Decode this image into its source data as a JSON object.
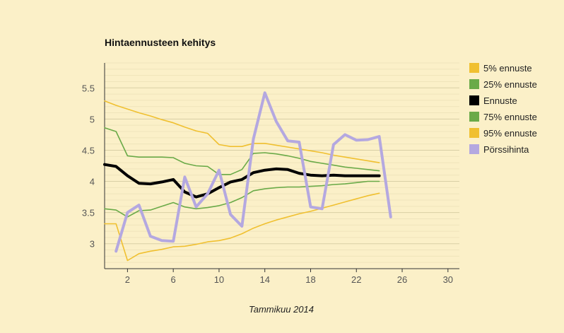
{
  "chart_data": {
    "type": "line",
    "title": "Hintaennusteen kehitys",
    "xlabel": "Tammikuu 2014",
    "ylabel": "",
    "xlim": [
      0,
      31
    ],
    "ylim": [
      2.6,
      5.9
    ],
    "x_ticks": [
      2,
      6,
      10,
      14,
      18,
      22,
      26,
      30
    ],
    "y_ticks": [
      3,
      3.5,
      4,
      4.5,
      5,
      5.5
    ],
    "y_tick_labels": [
      "3",
      "3.5",
      "4",
      "4.5",
      "5",
      "5.5"
    ],
    "grid": true,
    "legend_position": "right",
    "series": [
      {
        "name": "5% ennuste",
        "color": "#f0c030",
        "width": 1.6,
        "x": [
          0,
          1,
          2,
          3,
          4,
          5,
          6,
          7,
          8,
          9,
          10,
          11,
          12,
          13,
          14,
          15,
          16,
          17,
          18,
          19,
          20,
          21,
          22,
          23,
          24
        ],
        "values": [
          3.32,
          3.32,
          2.73,
          2.84,
          2.88,
          2.91,
          2.95,
          2.96,
          2.99,
          3.03,
          3.05,
          3.09,
          3.16,
          3.25,
          3.32,
          3.38,
          3.43,
          3.48,
          3.52,
          3.57,
          3.62,
          3.67,
          3.72,
          3.77,
          3.81
        ]
      },
      {
        "name": "25% ennuste",
        "color": "#6aaa48",
        "width": 1.6,
        "x": [
          0,
          1,
          2,
          3,
          4,
          5,
          6,
          7,
          8,
          9,
          10,
          11,
          12,
          13,
          14,
          15,
          16,
          17,
          18,
          19,
          20,
          21,
          22,
          23,
          24
        ],
        "values": [
          3.56,
          3.54,
          3.43,
          3.53,
          3.54,
          3.6,
          3.66,
          3.59,
          3.56,
          3.58,
          3.61,
          3.66,
          3.74,
          3.85,
          3.88,
          3.9,
          3.91,
          3.91,
          3.92,
          3.93,
          3.95,
          3.96,
          3.98,
          4.0,
          4.0
        ]
      },
      {
        "name": "Ennuste",
        "color": "#000000",
        "width": 4,
        "x": [
          0,
          1,
          2,
          3,
          4,
          5,
          6,
          7,
          8,
          9,
          10,
          11,
          12,
          13,
          14,
          15,
          16,
          17,
          18,
          19,
          20,
          21,
          22,
          23,
          24
        ],
        "values": [
          4.27,
          4.24,
          4.09,
          3.97,
          3.96,
          3.99,
          4.03,
          3.83,
          3.75,
          3.8,
          3.9,
          3.99,
          4.03,
          4.14,
          4.18,
          4.2,
          4.19,
          4.13,
          4.1,
          4.09,
          4.1,
          4.09,
          4.09,
          4.09,
          4.09
        ]
      },
      {
        "name": "75% ennuste",
        "color": "#6aaa48",
        "width": 1.6,
        "x": [
          0,
          1,
          2,
          3,
          4,
          5,
          6,
          7,
          8,
          9,
          10,
          11,
          12,
          13,
          14,
          15,
          16,
          17,
          18,
          19,
          20,
          21,
          22,
          23,
          24
        ],
        "values": [
          4.86,
          4.8,
          4.41,
          4.39,
          4.39,
          4.39,
          4.38,
          4.29,
          4.25,
          4.24,
          4.11,
          4.11,
          4.19,
          4.45,
          4.46,
          4.44,
          4.41,
          4.37,
          4.32,
          4.29,
          4.26,
          4.23,
          4.21,
          4.19,
          4.17
        ]
      },
      {
        "name": "95% ennuste",
        "color": "#f0c030",
        "width": 1.6,
        "x": [
          0,
          1,
          2,
          3,
          4,
          5,
          6,
          7,
          8,
          9,
          10,
          11,
          12,
          13,
          14,
          15,
          16,
          17,
          18,
          19,
          20,
          21,
          22,
          23,
          24
        ],
        "values": [
          5.29,
          5.22,
          5.16,
          5.1,
          5.05,
          4.99,
          4.94,
          4.87,
          4.81,
          4.77,
          4.59,
          4.56,
          4.56,
          4.61,
          4.61,
          4.58,
          4.55,
          4.52,
          4.49,
          4.46,
          4.42,
          4.39,
          4.36,
          4.33,
          4.3
        ]
      },
      {
        "name": "Pörssihinta",
        "color": "#b4a8e0",
        "width": 4,
        "x": [
          1,
          2,
          3,
          4,
          5,
          6,
          7,
          8,
          9,
          10,
          11,
          12,
          13,
          14,
          15,
          16,
          17,
          18,
          19,
          20,
          21,
          22,
          23,
          24,
          25
        ],
        "values": [
          2.88,
          3.5,
          3.62,
          3.12,
          3.05,
          3.04,
          4.07,
          3.59,
          3.8,
          4.18,
          3.47,
          3.28,
          4.68,
          5.42,
          4.96,
          4.65,
          4.63,
          3.59,
          3.56,
          4.59,
          4.75,
          4.66,
          4.67,
          4.72,
          3.43
        ]
      }
    ]
  }
}
